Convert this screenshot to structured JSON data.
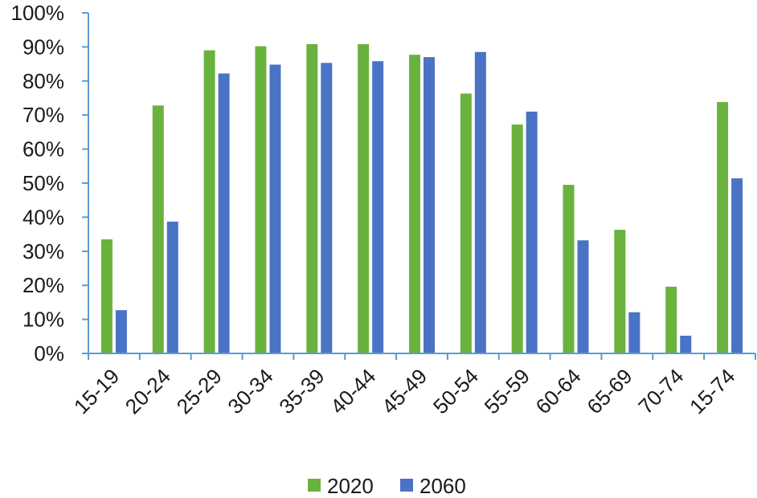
{
  "chart_data": {
    "type": "bar",
    "categories": [
      "15-19",
      "20-24",
      "25-29",
      "30-34",
      "35-39",
      "40-44",
      "45-49",
      "50-54",
      "55-59",
      "60-64",
      "65-69",
      "70-74",
      "15-74"
    ],
    "series": [
      {
        "name": "2020",
        "color": "#6ab23e",
        "values": [
          33.5,
          72.8,
          89.0,
          90.2,
          90.8,
          90.8,
          87.7,
          76.3,
          67.2,
          49.5,
          36.3,
          19.6,
          73.8
        ]
      },
      {
        "name": "2060",
        "color": "#4a73c6",
        "values": [
          12.7,
          38.7,
          82.2,
          84.8,
          85.3,
          85.8,
          87.0,
          88.5,
          71.0,
          33.2,
          12.1,
          5.2,
          51.4
        ]
      }
    ],
    "y_ticks": [
      "0%",
      "10%",
      "20%",
      "30%",
      "40%",
      "50%",
      "60%",
      "70%",
      "80%",
      "90%",
      "100%"
    ],
    "ylim": [
      0,
      100
    ],
    "title": "",
    "xlabel": "",
    "ylabel": "",
    "grid": false,
    "legend_position": "bottom-center",
    "axis_color": "#5b9bd5"
  }
}
